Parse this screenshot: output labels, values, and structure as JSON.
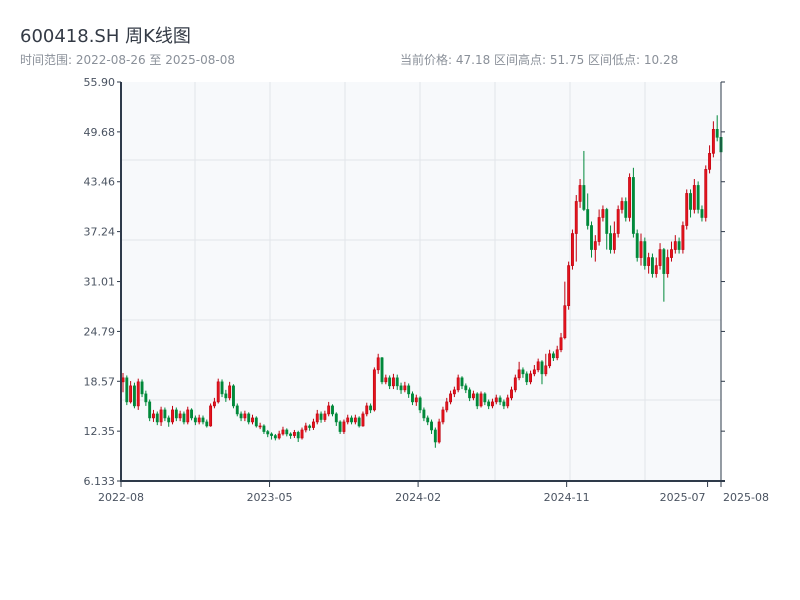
{
  "header": {
    "title": "600418.SH 周K线图",
    "range": "时间范围: 2022-08-26 至 2025-08-08",
    "stats": "当前价格: 47.18  区间高点: 51.75  区间低点: 10.28"
  },
  "colors": {
    "up": "#e3141d",
    "up_stroke": "#c0000e",
    "down": "#00893a",
    "axis": "#2e3a4a",
    "grid": "#e2e5ea",
    "plot_bg": "#f7f9fb"
  },
  "chart_data": {
    "type": "candlestick",
    "title": "600418.SH 周K线图",
    "xlabel": "",
    "ylabel": "",
    "ylim": [
      6.133,
      55.9
    ],
    "yticks": [
      "6.133",
      "12.35",
      "18.57",
      "24.79",
      "31.01",
      "37.24",
      "43.46",
      "49.68",
      "55.90"
    ],
    "xticks": [
      {
        "label": "2022-08",
        "index": 0
      },
      {
        "label": "2023-05",
        "index": 39
      },
      {
        "label": "2024-02",
        "index": 78
      },
      {
        "label": "2024-11",
        "index": 117
      },
      {
        "label": "2025-07",
        "index": 154
      },
      {
        "label": "2025-08",
        "index": 157
      }
    ],
    "ohlc_format": [
      "open",
      "close",
      "low",
      "high"
    ],
    "ohlc": [
      [
        18.5,
        19.0,
        17.2,
        19.6
      ],
      [
        19.0,
        16.0,
        15.6,
        19.3
      ],
      [
        16.0,
        18.0,
        15.8,
        18.6
      ],
      [
        18.0,
        15.5,
        15.2,
        18.4
      ],
      [
        15.5,
        18.5,
        15.0,
        18.9
      ],
      [
        18.5,
        17.0,
        16.6,
        18.8
      ],
      [
        17.0,
        16.0,
        15.5,
        17.4
      ],
      [
        16.0,
        14.0,
        13.6,
        16.3
      ],
      [
        14.0,
        14.5,
        13.5,
        15.0
      ],
      [
        14.5,
        13.5,
        13.1,
        14.8
      ],
      [
        13.5,
        15.0,
        13.0,
        15.4
      ],
      [
        15.0,
        14.0,
        13.6,
        15.3
      ],
      [
        14.0,
        13.5,
        12.9,
        14.3
      ],
      [
        13.5,
        15.0,
        13.2,
        15.5
      ],
      [
        15.0,
        14.0,
        13.6,
        15.3
      ],
      [
        14.0,
        14.5,
        13.6,
        14.9
      ],
      [
        14.5,
        13.5,
        13.2,
        14.8
      ],
      [
        13.5,
        15.0,
        13.2,
        15.4
      ],
      [
        15.0,
        14.0,
        13.7,
        15.2
      ],
      [
        14.0,
        13.5,
        13.1,
        14.3
      ],
      [
        13.5,
        14.0,
        13.2,
        14.4
      ],
      [
        14.0,
        13.5,
        13.2,
        14.3
      ],
      [
        13.5,
        13.0,
        12.8,
        13.8
      ],
      [
        13.0,
        15.5,
        12.9,
        15.8
      ],
      [
        15.5,
        16.0,
        15.2,
        16.5
      ],
      [
        16.0,
        18.5,
        15.8,
        18.9
      ],
      [
        18.5,
        17.0,
        16.6,
        18.8
      ],
      [
        17.0,
        16.5,
        16.0,
        17.5
      ],
      [
        16.5,
        18.0,
        16.2,
        18.5
      ],
      [
        18.0,
        15.5,
        15.2,
        18.2
      ],
      [
        15.5,
        14.5,
        14.2,
        15.8
      ],
      [
        14.5,
        14.0,
        13.6,
        14.8
      ],
      [
        14.0,
        14.5,
        13.6,
        14.9
      ],
      [
        14.5,
        13.5,
        13.2,
        14.7
      ],
      [
        13.5,
        14.0,
        13.2,
        14.4
      ],
      [
        14.0,
        13.0,
        12.8,
        14.2
      ],
      [
        13.0,
        13.0,
        12.6,
        13.4
      ],
      [
        13.0,
        12.3,
        12.0,
        13.2
      ],
      [
        12.3,
        12.0,
        11.6,
        12.5
      ],
      [
        12.0,
        11.8,
        11.3,
        12.2
      ],
      [
        11.8,
        11.5,
        11.2,
        12.0
      ],
      [
        11.5,
        12.0,
        11.3,
        12.4
      ],
      [
        12.0,
        12.5,
        11.8,
        12.9
      ],
      [
        12.5,
        12.0,
        11.7,
        12.7
      ],
      [
        12.0,
        11.8,
        11.4,
        12.2
      ],
      [
        11.8,
        12.2,
        11.5,
        12.5
      ],
      [
        12.2,
        11.5,
        11.0,
        12.4
      ],
      [
        11.5,
        12.5,
        11.3,
        12.8
      ],
      [
        12.5,
        13.0,
        12.2,
        13.4
      ],
      [
        13.0,
        12.8,
        12.4,
        13.2
      ],
      [
        12.8,
        13.5,
        12.5,
        13.9
      ],
      [
        13.5,
        14.5,
        13.2,
        15.0
      ],
      [
        14.5,
        13.8,
        13.4,
        14.8
      ],
      [
        13.8,
        14.5,
        13.5,
        14.9
      ],
      [
        14.5,
        15.5,
        14.2,
        16.0
      ],
      [
        15.5,
        14.5,
        14.2,
        15.7
      ],
      [
        14.5,
        13.5,
        13.0,
        14.7
      ],
      [
        13.5,
        12.3,
        12.0,
        13.7
      ],
      [
        12.3,
        13.5,
        12.0,
        13.8
      ],
      [
        13.5,
        14.0,
        13.2,
        14.4
      ],
      [
        14.0,
        13.5,
        13.2,
        14.3
      ],
      [
        13.5,
        14.0,
        13.2,
        14.4
      ],
      [
        14.0,
        13.0,
        12.8,
        14.2
      ],
      [
        13.0,
        14.5,
        12.9,
        14.8
      ],
      [
        14.5,
        15.5,
        14.2,
        15.9
      ],
      [
        15.5,
        15.0,
        14.6,
        15.8
      ],
      [
        15.0,
        20.0,
        14.8,
        20.3
      ],
      [
        20.0,
        21.5,
        19.5,
        22.0
      ],
      [
        21.5,
        18.5,
        18.2,
        21.6
      ],
      [
        18.5,
        19.0,
        18.2,
        19.4
      ],
      [
        19.0,
        18.0,
        17.6,
        19.3
      ],
      [
        18.0,
        19.0,
        17.6,
        19.5
      ],
      [
        19.0,
        18.0,
        17.5,
        19.4
      ],
      [
        18.0,
        17.5,
        17.0,
        18.4
      ],
      [
        17.5,
        18.0,
        17.2,
        18.5
      ],
      [
        18.0,
        17.0,
        16.5,
        18.3
      ],
      [
        17.0,
        16.0,
        15.6,
        17.3
      ],
      [
        16.0,
        16.5,
        15.5,
        16.9
      ],
      [
        16.5,
        15.0,
        14.6,
        16.7
      ],
      [
        15.0,
        14.0,
        13.6,
        15.3
      ],
      [
        14.0,
        13.5,
        13.1,
        14.3
      ],
      [
        13.5,
        12.5,
        12.0,
        13.8
      ],
      [
        12.5,
        11.0,
        10.28,
        12.8
      ],
      [
        11.0,
        13.5,
        10.8,
        13.9
      ],
      [
        13.5,
        15.0,
        13.2,
        15.4
      ],
      [
        15.0,
        16.0,
        14.7,
        16.5
      ],
      [
        16.0,
        17.0,
        15.7,
        17.4
      ],
      [
        17.0,
        17.5,
        16.6,
        17.9
      ],
      [
        17.5,
        19.0,
        17.2,
        19.4
      ],
      [
        19.0,
        18.0,
        17.6,
        19.2
      ],
      [
        18.0,
        17.5,
        17.1,
        18.3
      ],
      [
        17.5,
        16.5,
        16.1,
        17.8
      ],
      [
        16.5,
        17.0,
        16.2,
        17.4
      ],
      [
        17.0,
        15.5,
        15.1,
        17.2
      ],
      [
        15.5,
        17.0,
        15.3,
        17.3
      ],
      [
        17.0,
        16.0,
        15.6,
        17.2
      ],
      [
        16.0,
        15.5,
        15.1,
        16.3
      ],
      [
        15.5,
        16.0,
        15.2,
        16.4
      ],
      [
        16.0,
        16.5,
        15.7,
        16.9
      ],
      [
        16.5,
        16.0,
        15.6,
        16.8
      ],
      [
        16.0,
        15.5,
        15.1,
        16.3
      ],
      [
        15.5,
        16.5,
        15.2,
        16.9
      ],
      [
        16.5,
        17.5,
        16.2,
        17.9
      ],
      [
        17.5,
        19.0,
        17.2,
        19.4
      ],
      [
        19.0,
        20.0,
        18.7,
        21.0
      ],
      [
        20.0,
        19.5,
        19.0,
        20.3
      ],
      [
        19.5,
        18.5,
        18.1,
        19.8
      ],
      [
        18.5,
        19.5,
        18.2,
        19.9
      ],
      [
        19.5,
        20.0,
        19.2,
        20.6
      ],
      [
        20.0,
        21.0,
        19.7,
        21.4
      ],
      [
        21.0,
        19.5,
        18.2,
        21.2
      ],
      [
        19.5,
        20.5,
        19.2,
        22.0
      ],
      [
        20.5,
        22.0,
        20.2,
        22.5
      ],
      [
        22.0,
        21.5,
        21.1,
        22.3
      ],
      [
        21.5,
        22.5,
        21.2,
        23.0
      ],
      [
        22.5,
        24.0,
        22.2,
        24.6
      ],
      [
        24.0,
        28.0,
        23.8,
        31.0
      ],
      [
        28.0,
        33.0,
        27.5,
        33.5
      ],
      [
        33.0,
        37.0,
        32.5,
        37.5
      ],
      [
        37.0,
        41.0,
        33.5,
        41.8
      ],
      [
        41.0,
        43.0,
        40.2,
        43.8
      ],
      [
        43.0,
        40.0,
        39.8,
        47.3
      ],
      [
        40.0,
        38.0,
        37.5,
        42.0
      ],
      [
        38.0,
        35.0,
        34.0,
        38.5
      ],
      [
        35.0,
        36.0,
        33.5,
        36.8
      ],
      [
        36.0,
        39.0,
        35.5,
        40.0
      ],
      [
        39.0,
        40.0,
        38.5,
        40.5
      ],
      [
        40.0,
        37.0,
        35.0,
        40.2
      ],
      [
        37.0,
        35.0,
        34.5,
        38.0
      ],
      [
        35.0,
        37.0,
        34.5,
        38.5
      ],
      [
        37.0,
        40.0,
        36.5,
        40.5
      ],
      [
        40.0,
        41.0,
        39.5,
        41.5
      ],
      [
        41.0,
        39.0,
        38.5,
        41.5
      ],
      [
        39.0,
        44.0,
        38.5,
        44.5
      ],
      [
        44.0,
        37.0,
        36.5,
        45.2
      ],
      [
        37.0,
        34.0,
        33.5,
        37.5
      ],
      [
        34.0,
        36.0,
        33.0,
        37.0
      ],
      [
        36.0,
        33.0,
        32.5,
        36.5
      ],
      [
        33.0,
        34.0,
        32.0,
        34.6
      ],
      [
        34.0,
        32.0,
        31.5,
        34.5
      ],
      [
        32.0,
        33.0,
        31.5,
        34.0
      ],
      [
        33.0,
        35.0,
        32.5,
        35.8
      ],
      [
        35.0,
        32.0,
        28.5,
        35.2
      ],
      [
        32.0,
        34.0,
        31.5,
        35.0
      ],
      [
        34.0,
        35.0,
        33.5,
        36.0
      ],
      [
        35.0,
        36.0,
        34.5,
        36.8
      ],
      [
        36.0,
        35.0,
        34.5,
        36.5
      ],
      [
        35.0,
        38.0,
        34.5,
        38.5
      ],
      [
        38.0,
        42.0,
        37.5,
        42.5
      ],
      [
        42.0,
        40.0,
        39.0,
        42.5
      ],
      [
        40.0,
        43.0,
        39.5,
        43.8
      ],
      [
        43.0,
        40.0,
        39.5,
        43.5
      ],
      [
        40.0,
        39.0,
        38.5,
        40.5
      ],
      [
        39.0,
        45.0,
        38.5,
        45.5
      ],
      [
        45.0,
        47.0,
        44.5,
        48.0
      ],
      [
        47.0,
        50.0,
        46.5,
        51.0
      ],
      [
        50.0,
        49.0,
        48.5,
        51.75
      ],
      [
        49.0,
        47.18,
        46.8,
        51.0
      ]
    ]
  }
}
